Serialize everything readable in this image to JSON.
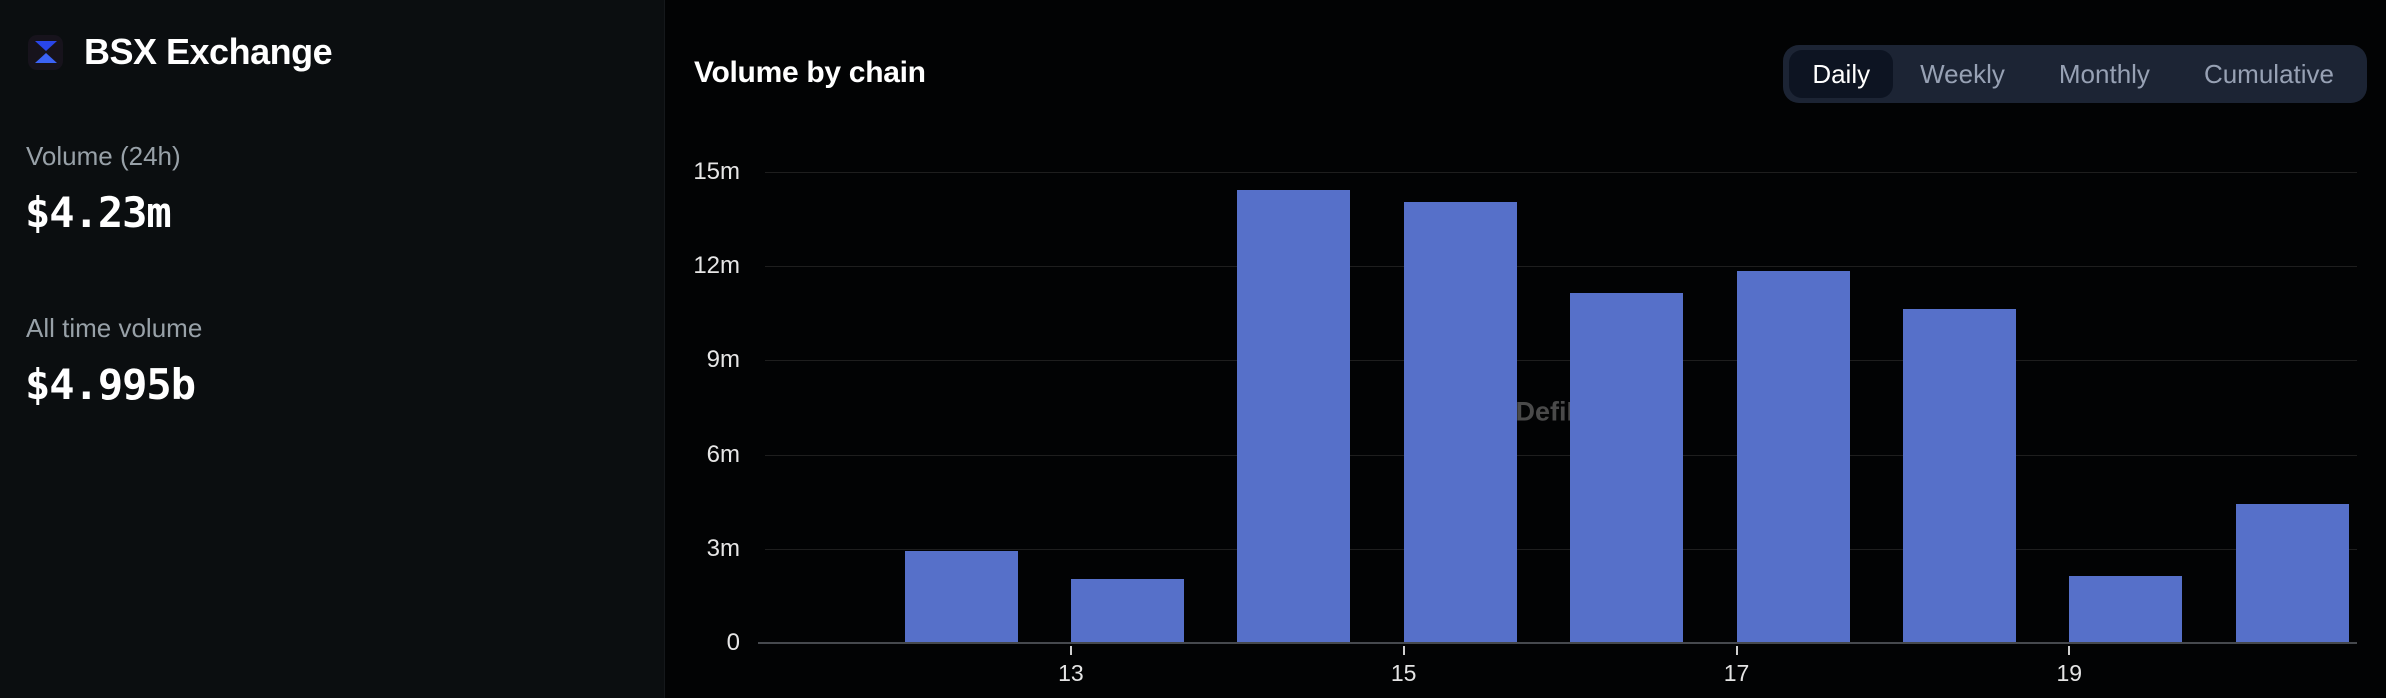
{
  "sidebar": {
    "brand": "BSX Exchange",
    "stats": [
      {
        "label": "Volume (24h)",
        "value": "$4.23m"
      },
      {
        "label": "All time volume",
        "value": "$4.995b"
      }
    ]
  },
  "header": {
    "title": "Volume by chain"
  },
  "tabs": [
    {
      "label": "Daily",
      "active": true
    },
    {
      "label": "Weekly",
      "active": false
    },
    {
      "label": "Monthly",
      "active": false
    },
    {
      "label": "Cumulative",
      "active": false
    }
  ],
  "watermark": "DefiLlama",
  "colors": {
    "bar": "#5670c9",
    "logo_blue_top": "#2946e9",
    "logo_blue_bottom": "#3b63f5",
    "sidebar_bg": "#0b0e10",
    "chart_bg": "#020304",
    "tab_group_bg": "#1c2434",
    "tab_active_bg": "#0d1422"
  },
  "chart_data": {
    "type": "bar",
    "title": "Volume by chain",
    "xlabel": "",
    "ylabel": "",
    "unit": "m (USD millions)",
    "x": [
      12,
      13,
      14,
      15,
      16,
      17,
      18,
      19,
      20
    ],
    "values": [
      2.9,
      2.0,
      14.4,
      14.0,
      11.1,
      11.8,
      10.6,
      2.1,
      4.4
    ],
    "ylim": [
      0,
      15
    ],
    "y_ticks": [
      {
        "value": 0,
        "label": "0"
      },
      {
        "value": 3,
        "label": "3m"
      },
      {
        "value": 6,
        "label": "6m"
      },
      {
        "value": 9,
        "label": "9m"
      },
      {
        "value": 12,
        "label": "12m"
      },
      {
        "value": 15,
        "label": "15m"
      }
    ],
    "x_ticks": [
      {
        "label": "13",
        "bar_index": 1
      },
      {
        "label": "15",
        "bar_index": 3
      },
      {
        "label": "17",
        "bar_index": 5
      },
      {
        "label": "19",
        "bar_index": 7
      }
    ],
    "grid": "horizontal",
    "legend_position": "none"
  }
}
